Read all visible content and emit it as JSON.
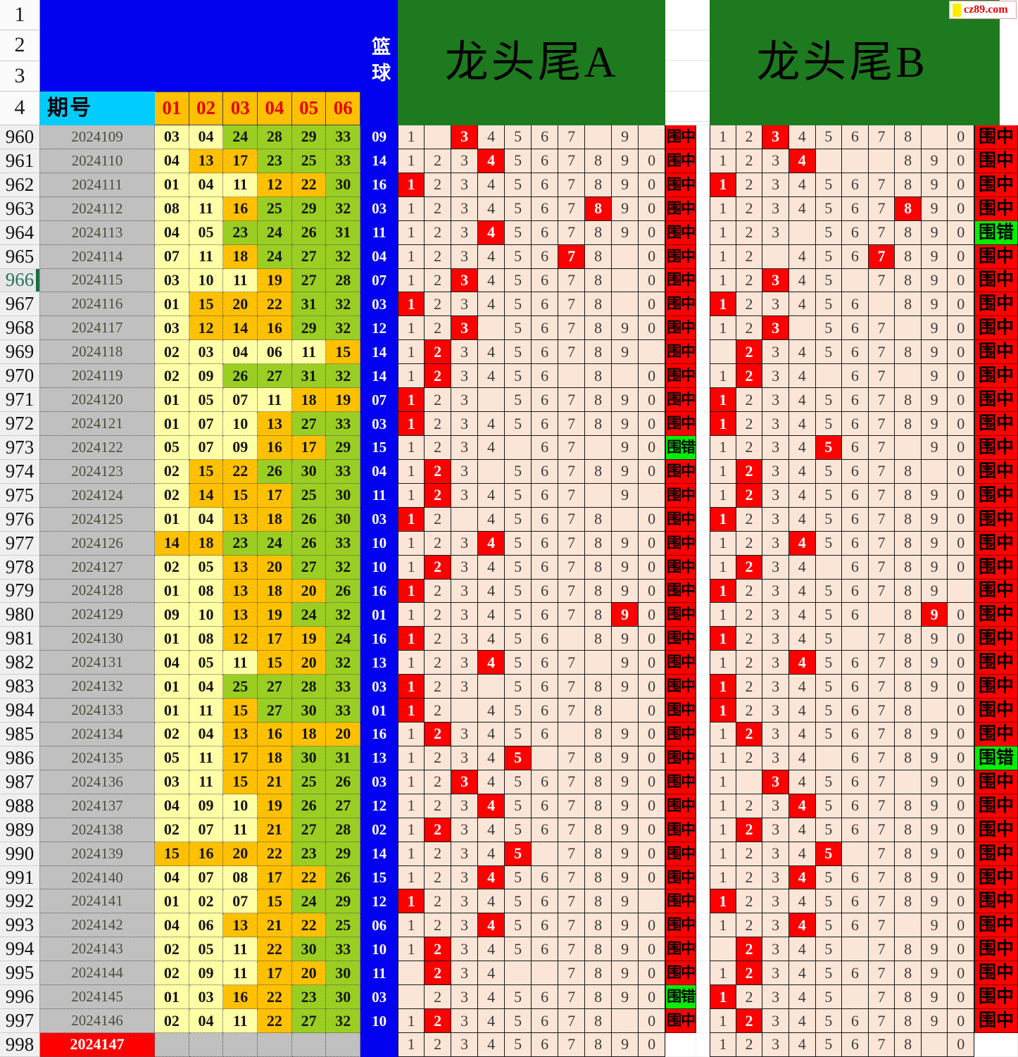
{
  "watermark": {
    "text": "cz89.com"
  },
  "corner_rows": [
    "1",
    "2",
    "3",
    "4"
  ],
  "header": {
    "period_label": "期号",
    "ball_columns": [
      "01",
      "02",
      "03",
      "04",
      "05",
      "06"
    ],
    "blue_label": "篮球",
    "section_a_title": "龙头尾A",
    "section_b_title": "龙头尾B"
  },
  "legend": {
    "hit": "围中",
    "miss": "围错"
  },
  "colors": {
    "blue": "#0202f0",
    "cyan": "#00ccff",
    "header_orange": "#ffc000",
    "ball_low": "#ffffa6",
    "ball_mid": "#ffc000",
    "ball_high": "#9ace22",
    "grid_bg": "#fbe5d6",
    "highlight_red": "#fe0000",
    "hit_bg": "#fe0000",
    "miss_bg": "#00ee00",
    "section_green": "#1e7a1e",
    "period_gray": "#c0c0c0",
    "next_row_red": "#fe0000",
    "wm_square": "#ffee00",
    "wm_text": "#ee0000"
  },
  "rows": [
    {
      "n": "960",
      "p": "2024109",
      "balls": [
        "03",
        "04",
        "24",
        "28",
        "29",
        "33"
      ],
      "blue": "09",
      "a": "1.34567.9.",
      "ah": 2,
      "ar": "hit",
      "b": "12345678.0",
      "bh": 2,
      "br": "hit"
    },
    {
      "n": "961",
      "p": "2024110",
      "balls": [
        "04",
        "13",
        "17",
        "23",
        "25",
        "33"
      ],
      "blue": "14",
      "a": "1234567890",
      "ah": 3,
      "ar": "hit",
      "b": "1234...890",
      "bh": 3,
      "br": "hit"
    },
    {
      "n": "962",
      "p": "2024111",
      "balls": [
        "01",
        "04",
        "11",
        "12",
        "22",
        "30"
      ],
      "blue": "16",
      "a": "1234567890",
      "ah": 0,
      "ar": "hit",
      "b": "1234567890",
      "bh": 0,
      "br": "hit"
    },
    {
      "n": "963",
      "p": "2024112",
      "balls": [
        "08",
        "11",
        "16",
        "25",
        "29",
        "32"
      ],
      "blue": "03",
      "a": "1234567890",
      "ah": 7,
      "ar": "hit",
      "b": "1234567890",
      "bh": 7,
      "br": "hit"
    },
    {
      "n": "964",
      "p": "2024113",
      "balls": [
        "04",
        "05",
        "23",
        "24",
        "26",
        "31"
      ],
      "blue": "11",
      "a": "1234567890",
      "ah": 3,
      "ar": "hit",
      "b": "123.567890",
      "bh": -1,
      "br": "miss"
    },
    {
      "n": "965",
      "p": "2024114",
      "balls": [
        "07",
        "11",
        "18",
        "24",
        "27",
        "32"
      ],
      "blue": "04",
      "a": "12345678.0",
      "ah": 6,
      "ar": "hit",
      "b": "12.4567890",
      "bh": 6,
      "br": "hit"
    },
    {
      "n": "966",
      "p": "2024115",
      "balls": [
        "03",
        "10",
        "11",
        "19",
        "27",
        "28"
      ],
      "blue": "07",
      "sel": true,
      "a": "12345678.0",
      "ah": 2,
      "ar": "hit",
      "b": "12345.7890",
      "bh": 2,
      "br": "hit"
    },
    {
      "n": "967",
      "p": "2024116",
      "balls": [
        "01",
        "15",
        "20",
        "22",
        "31",
        "32"
      ],
      "blue": "03",
      "a": "12345678.0",
      "ah": 0,
      "ar": "hit",
      "b": "123456.890",
      "bh": 0,
      "br": "hit"
    },
    {
      "n": "968",
      "p": "2024117",
      "balls": [
        "03",
        "12",
        "14",
        "16",
        "29",
        "32"
      ],
      "blue": "12",
      "a": "123.567890",
      "ah": 2,
      "ar": "hit",
      "b": "123.567.90",
      "bh": 2,
      "br": "hit"
    },
    {
      "n": "969",
      "p": "2024118",
      "balls": [
        "02",
        "03",
        "04",
        "06",
        "11",
        "15"
      ],
      "blue": "14",
      "a": "123456789.",
      "ah": 1,
      "ar": "hit",
      "b": ".234567890",
      "bh": 1,
      "br": "hit"
    },
    {
      "n": "970",
      "p": "2024119",
      "balls": [
        "02",
        "09",
        "26",
        "27",
        "31",
        "32"
      ],
      "blue": "14",
      "a": "123456.8.0",
      "ah": 1,
      "ar": "hit",
      "b": "1234.67.90",
      "bh": 1,
      "br": "hit"
    },
    {
      "n": "971",
      "p": "2024120",
      "balls": [
        "01",
        "05",
        "07",
        "11",
        "18",
        "19"
      ],
      "blue": "07",
      "a": "123.567890",
      "ah": 0,
      "ar": "hit",
      "b": "1234567890",
      "bh": 0,
      "br": "hit"
    },
    {
      "n": "972",
      "p": "2024121",
      "balls": [
        "01",
        "07",
        "10",
        "13",
        "27",
        "33"
      ],
      "blue": "03",
      "a": "1234567890",
      "ah": 0,
      "ar": "hit",
      "b": "1234567890",
      "bh": 0,
      "br": "hit"
    },
    {
      "n": "973",
      "p": "2024122",
      "balls": [
        "05",
        "07",
        "09",
        "16",
        "17",
        "29"
      ],
      "blue": "15",
      "a": "1234.67.90",
      "ah": -1,
      "ar": "miss",
      "b": "1234567.90",
      "bh": 4,
      "br": "hit"
    },
    {
      "n": "974",
      "p": "2024123",
      "balls": [
        "02",
        "15",
        "22",
        "26",
        "30",
        "33"
      ],
      "blue": "04",
      "a": "123.567890",
      "ah": 1,
      "ar": "hit",
      "b": "12345678.0",
      "bh": 1,
      "br": "hit"
    },
    {
      "n": "975",
      "p": "2024124",
      "balls": [
        "02",
        "14",
        "15",
        "17",
        "25",
        "30"
      ],
      "blue": "11",
      "a": "1234567.9.",
      "ah": 1,
      "ar": "hit",
      "b": "1234567890",
      "bh": 1,
      "br": "hit"
    },
    {
      "n": "976",
      "p": "2024125",
      "balls": [
        "01",
        "04",
        "13",
        "18",
        "26",
        "30"
      ],
      "blue": "03",
      "a": "12.45678.0",
      "ah": 0,
      "ar": "hit",
      "b": "1234567890",
      "bh": 0,
      "br": "hit"
    },
    {
      "n": "977",
      "p": "2024126",
      "balls": [
        "14",
        "18",
        "23",
        "24",
        "26",
        "33"
      ],
      "blue": "10",
      "a": "1234567890",
      "ah": 3,
      "ar": "hit",
      "b": "1234567890",
      "bh": 3,
      "br": "hit"
    },
    {
      "n": "978",
      "p": "2024127",
      "balls": [
        "02",
        "05",
        "13",
        "20",
        "27",
        "32"
      ],
      "blue": "10",
      "a": "1234567890",
      "ah": 1,
      "ar": "hit",
      "b": "1234.67890",
      "bh": 1,
      "br": "hit"
    },
    {
      "n": "979",
      "p": "2024128",
      "balls": [
        "01",
        "08",
        "13",
        "18",
        "20",
        "26"
      ],
      "blue": "16",
      "a": "1234567890",
      "ah": 0,
      "ar": "hit",
      "b": "123456789.",
      "bh": 0,
      "br": "hit"
    },
    {
      "n": "980",
      "p": "2024129",
      "balls": [
        "09",
        "10",
        "13",
        "19",
        "24",
        "32"
      ],
      "blue": "01",
      "a": "1234567890",
      "ah": 8,
      "ar": "hit",
      "b": "123456.890",
      "bh": 8,
      "br": "hit"
    },
    {
      "n": "981",
      "p": "2024130",
      "balls": [
        "01",
        "08",
        "12",
        "17",
        "19",
        "24"
      ],
      "blue": "16",
      "a": "123456.890",
      "ah": 0,
      "ar": "hit",
      "b": "12345.7890",
      "bh": 0,
      "br": "hit"
    },
    {
      "n": "982",
      "p": "2024131",
      "balls": [
        "04",
        "05",
        "11",
        "15",
        "20",
        "32"
      ],
      "blue": "13",
      "a": "1234567.90",
      "ah": 3,
      "ar": "hit",
      "b": "1234567890",
      "bh": 3,
      "br": "hit"
    },
    {
      "n": "983",
      "p": "2024132",
      "balls": [
        "01",
        "04",
        "25",
        "27",
        "28",
        "33"
      ],
      "blue": "03",
      "a": "123.567890",
      "ah": 0,
      "ar": "hit",
      "b": "1234567890",
      "bh": 0,
      "br": "hit"
    },
    {
      "n": "984",
      "p": "2024133",
      "balls": [
        "01",
        "11",
        "15",
        "27",
        "30",
        "33"
      ],
      "blue": "01",
      "a": "12.45678.0",
      "ah": 0,
      "ar": "hit",
      "b": "12345678.0",
      "bh": 0,
      "br": "hit"
    },
    {
      "n": "985",
      "p": "2024134",
      "balls": [
        "02",
        "04",
        "13",
        "16",
        "18",
        "20"
      ],
      "blue": "16",
      "a": "123456.890",
      "ah": 1,
      "ar": "hit",
      "b": "1234567890",
      "bh": 1,
      "br": "hit"
    },
    {
      "n": "986",
      "p": "2024135",
      "balls": [
        "05",
        "11",
        "17",
        "18",
        "30",
        "31"
      ],
      "blue": "13",
      "a": "12345.7890",
      "ah": 4,
      "ar": "hit",
      "b": "1234.67890",
      "bh": -1,
      "br": "miss"
    },
    {
      "n": "987",
      "p": "2024136",
      "balls": [
        "03",
        "11",
        "15",
        "21",
        "25",
        "26"
      ],
      "blue": "03",
      "a": "1234567890",
      "ah": 2,
      "ar": "hit",
      "b": "1.34567.90",
      "bh": 2,
      "br": "hit"
    },
    {
      "n": "988",
      "p": "2024137",
      "balls": [
        "04",
        "09",
        "10",
        "19",
        "26",
        "27"
      ],
      "blue": "12",
      "a": "1234567890",
      "ah": 3,
      "ar": "hit",
      "b": "1234567890",
      "bh": 3,
      "br": "hit"
    },
    {
      "n": "989",
      "p": "2024138",
      "balls": [
        "02",
        "07",
        "11",
        "21",
        "27",
        "28"
      ],
      "blue": "02",
      "a": "1234567890",
      "ah": 1,
      "ar": "hit",
      "b": "1234567890",
      "bh": 1,
      "br": "hit"
    },
    {
      "n": "990",
      "p": "2024139",
      "balls": [
        "15",
        "16",
        "20",
        "22",
        "23",
        "29"
      ],
      "blue": "14",
      "a": "12345.7890",
      "ah": 4,
      "ar": "hit",
      "b": "12345.7890",
      "bh": 4,
      "br": "hit"
    },
    {
      "n": "991",
      "p": "2024140",
      "balls": [
        "04",
        "07",
        "08",
        "17",
        "22",
        "26"
      ],
      "blue": "15",
      "a": "1234567890",
      "ah": 3,
      "ar": "hit",
      "b": "1234567890",
      "bh": 3,
      "br": "hit"
    },
    {
      "n": "992",
      "p": "2024141",
      "balls": [
        "01",
        "02",
        "07",
        "15",
        "24",
        "29"
      ],
      "blue": "12",
      "a": "123456789.",
      "ah": 0,
      "ar": "hit",
      "b": "1234567890",
      "bh": 0,
      "br": "hit"
    },
    {
      "n": "993",
      "p": "2024142",
      "balls": [
        "04",
        "06",
        "13",
        "21",
        "22",
        "25"
      ],
      "blue": "06",
      "a": "1234567890",
      "ah": 3,
      "ar": "hit",
      "b": "1234567.90",
      "bh": 3,
      "br": "hit"
    },
    {
      "n": "994",
      "p": "2024143",
      "balls": [
        "02",
        "05",
        "11",
        "22",
        "30",
        "33"
      ],
      "blue": "10",
      "a": "1234567890",
      "ah": 1,
      "ar": "hit",
      "b": ".2345.7890",
      "bh": 1,
      "br": "hit"
    },
    {
      "n": "995",
      "p": "2024144",
      "balls": [
        "02",
        "09",
        "11",
        "17",
        "20",
        "30"
      ],
      "blue": "11",
      "a": ".234..7890",
      "ah": 1,
      "ar": "hit",
      "b": "1234567890",
      "bh": 1,
      "br": "hit"
    },
    {
      "n": "996",
      "p": "2024145",
      "balls": [
        "01",
        "03",
        "16",
        "22",
        "23",
        "30"
      ],
      "blue": "03",
      "a": ".234567890",
      "ah": -1,
      "ar": "miss",
      "b": "12345.7890",
      "bh": 0,
      "br": "hit"
    },
    {
      "n": "997",
      "p": "2024146",
      "balls": [
        "02",
        "04",
        "11",
        "22",
        "27",
        "32"
      ],
      "blue": "10",
      "a": "12345678.0",
      "ah": 1,
      "ar": "hit",
      "b": "1234567890",
      "bh": 1,
      "br": "hit"
    },
    {
      "n": "998",
      "p": "2024147",
      "p_red": true,
      "balls": [],
      "blue": "",
      "a": "1234567890",
      "ah": -1,
      "ar": "",
      "b": "12345678.0",
      "bh": -1,
      "br": ""
    }
  ]
}
